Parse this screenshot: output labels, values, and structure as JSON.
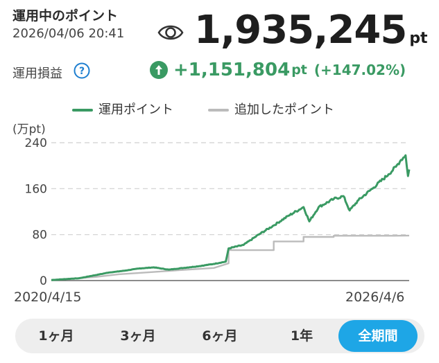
{
  "header": {
    "title": "運用中のポイント",
    "timestamp": "2026/04/06 20:41",
    "eye_icon": "eye-icon",
    "total_value": "1,935,245",
    "total_unit": "pt"
  },
  "profit": {
    "label": "運用損益",
    "help_icon": "question-icon",
    "direction_icon": "arrow-up-circle-icon",
    "value": "+1,151,804",
    "unit": "pt",
    "percent": "(+147.02%)",
    "color": "#3a9a63"
  },
  "chart_data": {
    "type": "line",
    "unit_label": "(万pt)",
    "ylim": [
      0,
      240
    ],
    "y_ticks": [
      "0",
      "80",
      "160",
      "240"
    ],
    "x_labels": [
      "2020/4/15",
      "2026/4/6"
    ],
    "x_range": [
      "2020-04-15",
      "2026-04-06"
    ],
    "grid": "horizontal-dashed",
    "legend_position": "top",
    "series": [
      {
        "name": "運用ポイント",
        "color": "#3a9a63",
        "x": [
          "2020-04-15",
          "2020-10-01",
          "2021-01-01",
          "2021-04-01",
          "2021-07-01",
          "2021-10-01",
          "2022-01-01",
          "2022-04-01",
          "2022-07-01",
          "2022-10-01",
          "2023-01-01",
          "2023-03-15",
          "2023-04-01",
          "2023-07-01",
          "2023-10-01",
          "2024-01-01",
          "2024-04-01",
          "2024-07-01",
          "2024-08-05",
          "2024-10-01",
          "2025-01-01",
          "2025-03-01",
          "2025-04-08",
          "2025-06-01",
          "2025-09-01",
          "2025-12-01",
          "2026-01-15",
          "2026-02-15",
          "2026-03-15",
          "2026-03-30",
          "2026-04-06"
        ],
        "values": [
          1,
          4,
          9,
          14,
          17,
          21,
          23,
          19,
          22,
          25,
          29,
          33,
          56,
          62,
          80,
          96,
          113,
          128,
          103,
          128,
          142,
          147,
          122,
          140,
          162,
          185,
          198,
          210,
          218,
          182,
          193.5
        ]
      },
      {
        "name": "追加したポイント",
        "color": "#bbbbbb",
        "x": [
          "2020-04-15",
          "2021-01-01",
          "2021-06-01",
          "2022-01-01",
          "2022-06-01",
          "2023-01-01",
          "2023-04-01",
          "2023-04-01",
          "2024-01-01",
          "2024-01-01",
          "2024-07-01",
          "2024-07-01",
          "2025-01-01",
          "2025-01-01",
          "2026-01-01",
          "2026-01-01",
          "2026-04-06"
        ],
        "values": [
          1,
          6,
          11,
          15,
          18,
          22,
          30,
          53,
          53,
          68,
          68,
          76,
          76,
          78,
          78,
          78,
          78.3
        ]
      }
    ]
  },
  "periods": {
    "items": [
      "1ヶ月",
      "3ヶ月",
      "6ヶ月",
      "1年",
      "全期間"
    ],
    "active_index": 4,
    "active_color": "#1ea6e6"
  }
}
